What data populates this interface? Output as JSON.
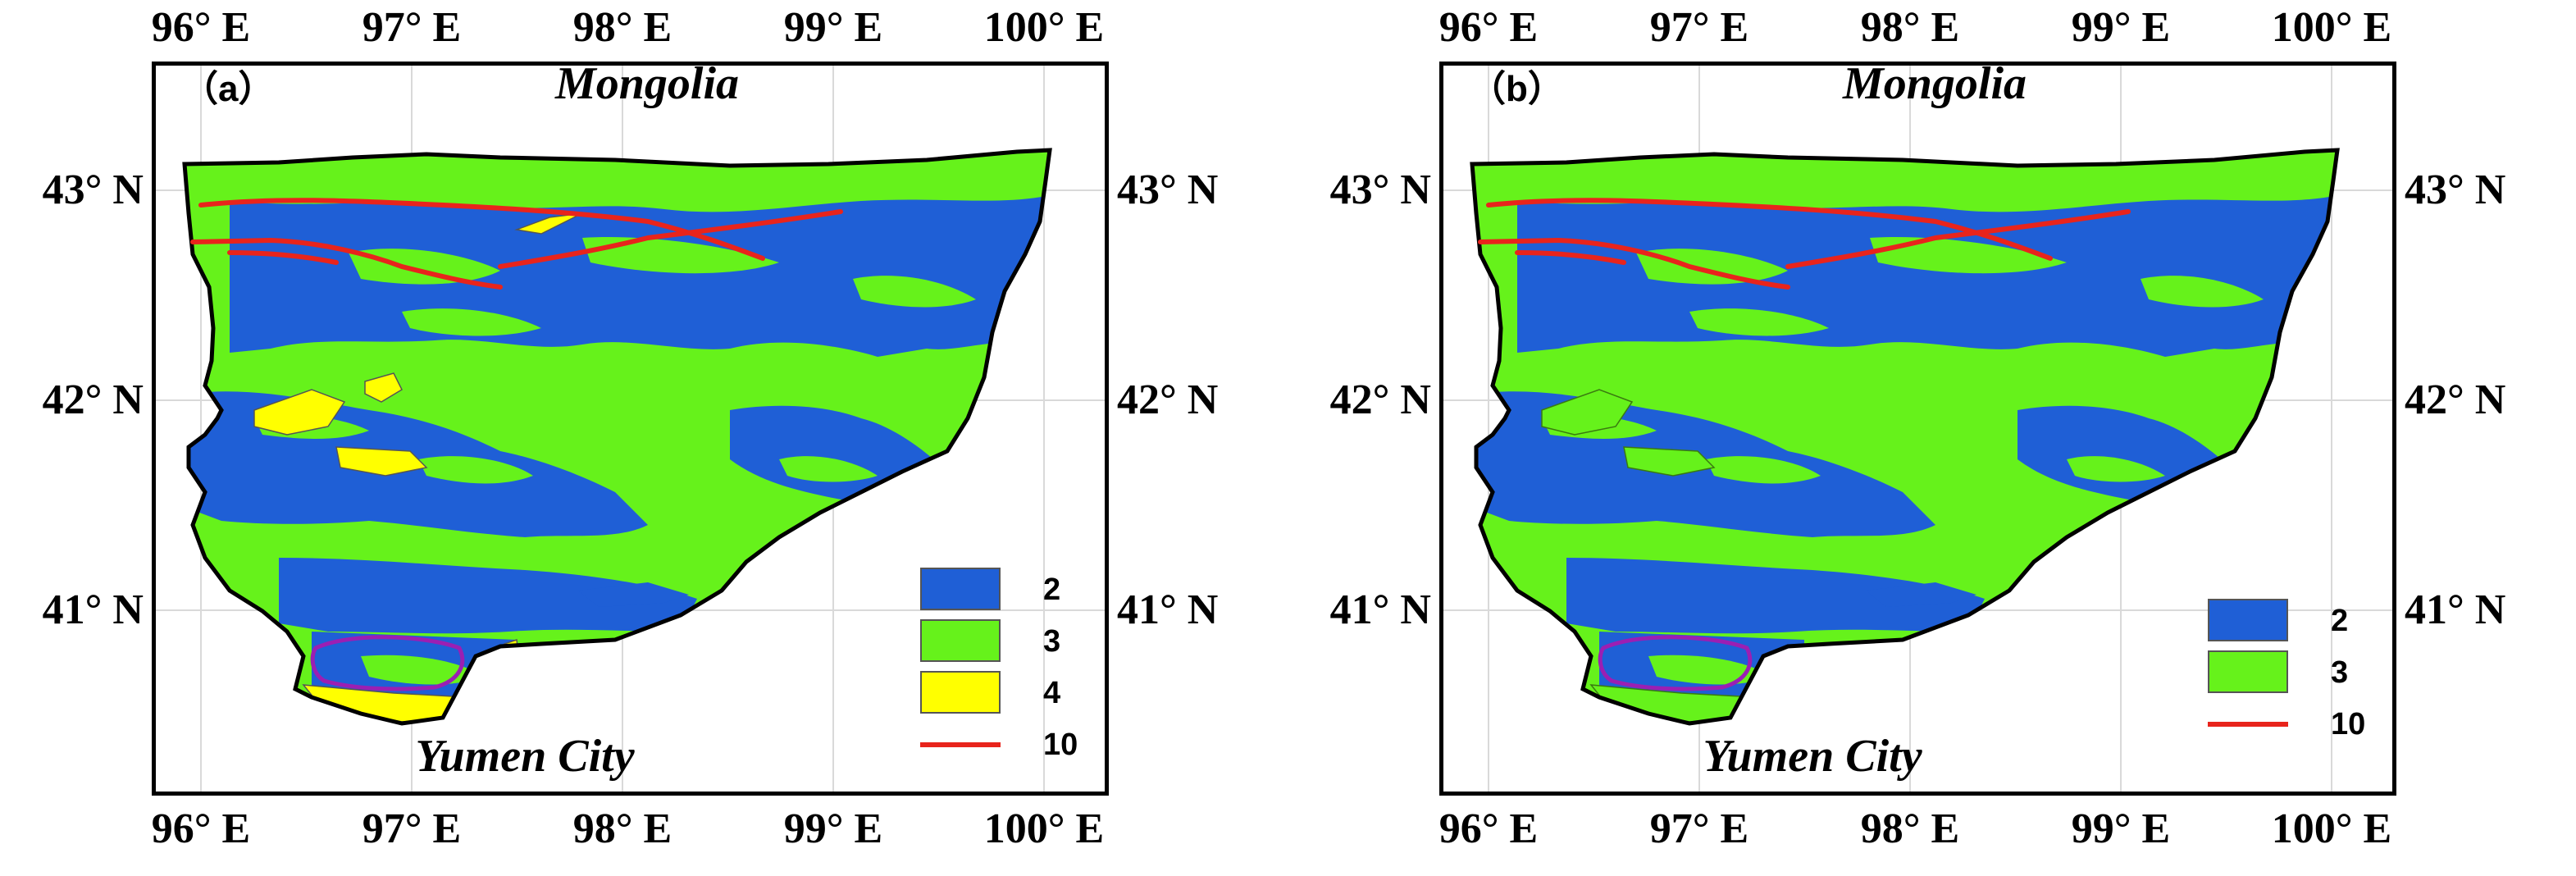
{
  "colors": {
    "class_2": "#1f5fd6",
    "class_3": "#66f21b",
    "class_4": "#ffff00",
    "class_10": "#e8241c",
    "lake_outline": "#9b1fb3",
    "boundary": "#000000",
    "grid": "#d9d9d9"
  },
  "axes": {
    "lon_ticks": [
      "96° E",
      "97° E",
      "98° E",
      "99° E",
      "100° E"
    ],
    "lat_ticks": [
      "43° N",
      "42° N",
      "41° N"
    ],
    "lon_values": [
      96,
      97,
      98,
      99,
      100
    ],
    "lat_values": [
      43,
      42,
      41
    ],
    "lon_range": [
      95.82,
      100.35
    ],
    "lat_range": [
      40.05,
      43.45
    ]
  },
  "panels": [
    {
      "label": "（a）",
      "north_label": "Mongolia",
      "south_label": "Yumen City",
      "legend": [
        {
          "label": "2",
          "kind": "fill",
          "color": "#1f5fd6"
        },
        {
          "label": "3",
          "kind": "fill",
          "color": "#66f21b"
        },
        {
          "label": "4",
          "kind": "fill",
          "color": "#ffff00"
        },
        {
          "label": "10",
          "kind": "line",
          "color": "#e8241c"
        }
      ]
    },
    {
      "label": "（b）",
      "north_label": "Mongolia",
      "south_label": "Yumen City",
      "legend": [
        {
          "label": "2",
          "kind": "fill",
          "color": "#1f5fd6"
        },
        {
          "label": "3",
          "kind": "fill",
          "color": "#66f21b"
        },
        {
          "label": "10",
          "kind": "line",
          "color": "#e8241c"
        }
      ]
    }
  ]
}
